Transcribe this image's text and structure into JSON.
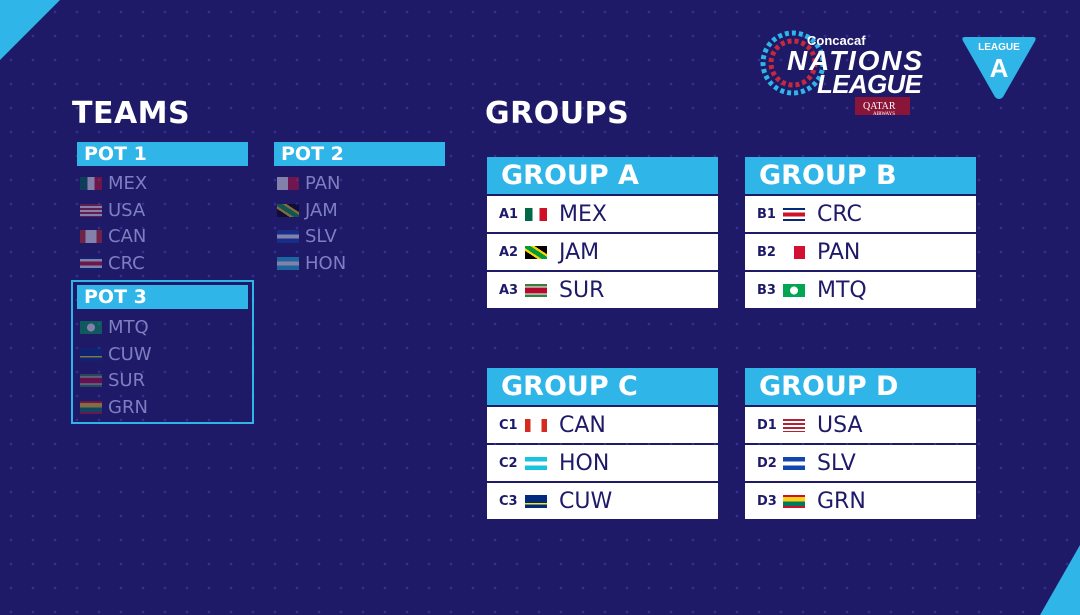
{
  "logo": {
    "brand": "Concacaf",
    "line1": "NATIONS",
    "line2": "LEAGUE",
    "sponsor": "QATAR",
    "sponsor_sub": "AIRWAYS"
  },
  "badge": {
    "label": "LEAGUE",
    "letter": "A"
  },
  "teams_title": "TEAMS",
  "groups_title": "GROUPS",
  "pots": [
    {
      "label": "POT 1",
      "teams": [
        "MEX",
        "USA",
        "CAN",
        "CRC"
      ]
    },
    {
      "label": "POT 2",
      "teams": [
        "PAN",
        "JAM",
        "SLV",
        "HON"
      ]
    },
    {
      "label": "POT 3",
      "teams": [
        "MTQ",
        "CUW",
        "SUR",
        "GRN"
      ]
    }
  ],
  "groups": [
    {
      "label": "GROUP A",
      "rows": [
        {
          "slot": "A1",
          "team": "MEX"
        },
        {
          "slot": "A2",
          "team": "JAM"
        },
        {
          "slot": "A3",
          "team": "SUR"
        }
      ]
    },
    {
      "label": "GROUP B",
      "rows": [
        {
          "slot": "B1",
          "team": "CRC"
        },
        {
          "slot": "B2",
          "team": "PAN"
        },
        {
          "slot": "B3",
          "team": "MTQ"
        }
      ]
    },
    {
      "label": "GROUP C",
      "rows": [
        {
          "slot": "C1",
          "team": "CAN"
        },
        {
          "slot": "C2",
          "team": "HON"
        },
        {
          "slot": "C3",
          "team": "CUW"
        }
      ]
    },
    {
      "label": "GROUP D",
      "rows": [
        {
          "slot": "D1",
          "team": "USA"
        },
        {
          "slot": "D2",
          "team": "SLV"
        },
        {
          "slot": "D3",
          "team": "GRN"
        }
      ]
    }
  ],
  "colors": {
    "background": "#1e1a68",
    "accent": "#2fb5e8"
  }
}
